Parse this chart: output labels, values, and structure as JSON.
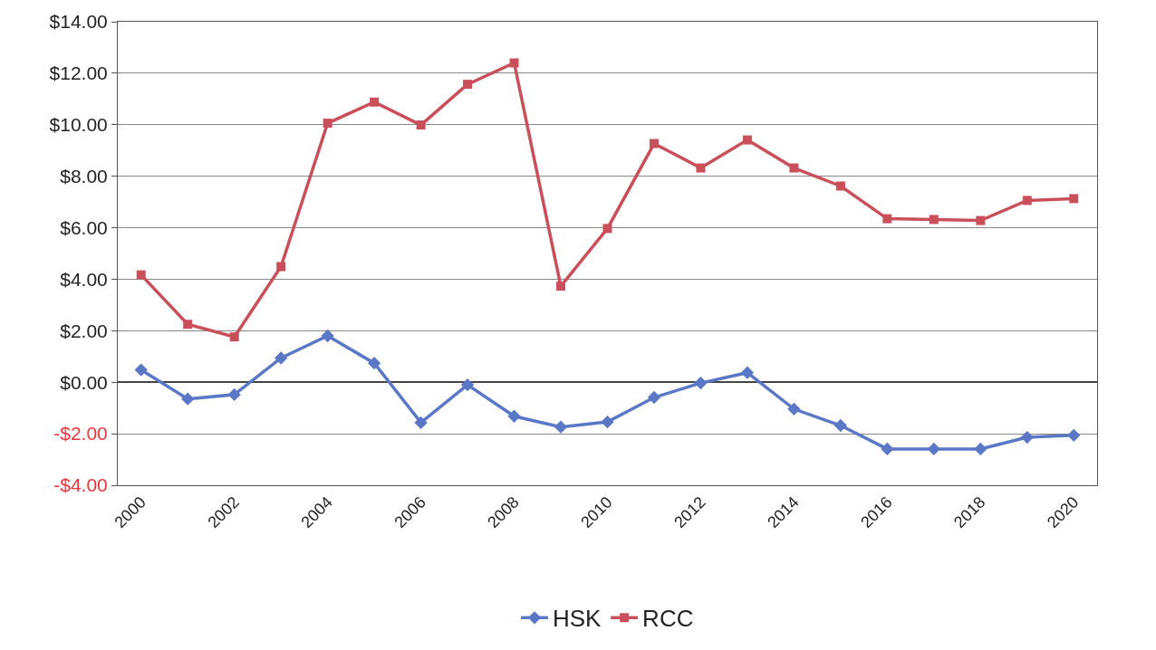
{
  "chart_data": {
    "type": "line",
    "categories": [
      "2000",
      null,
      "2002",
      null,
      "2004",
      null,
      "2006",
      null,
      "2008",
      null,
      "2010",
      null,
      "2012",
      null,
      "2014",
      null,
      "2016",
      null,
      "2018",
      null,
      "2020"
    ],
    "series": [
      {
        "name": "HSK",
        "color": "#5b78c6",
        "marker": "diamond",
        "values": [
          0.48,
          -0.65,
          -0.48,
          0.94,
          1.8,
          0.74,
          -1.57,
          -0.1,
          -1.32,
          -1.74,
          -1.54,
          -0.59,
          -0.03,
          0.37,
          -1.04,
          -1.68,
          -2.59,
          -2.59,
          -2.59,
          -2.14,
          -2.06
        ]
      },
      {
        "name": "RCC",
        "color": "#c9505a",
        "marker": "square",
        "values": [
          4.17,
          2.25,
          1.76,
          4.49,
          10.06,
          10.88,
          9.99,
          11.57,
          12.4,
          3.73,
          5.97,
          9.27,
          8.32,
          9.41,
          8.32,
          7.62,
          6.35,
          6.32,
          6.28,
          7.06,
          7.13
        ]
      }
    ],
    "ylim": [
      -4,
      14
    ],
    "yticks": [
      {
        "value": -4,
        "label": "-$4.00"
      },
      {
        "value": -2,
        "label": "-$2.00"
      },
      {
        "value": 0,
        "label": "$0.00"
      },
      {
        "value": 2,
        "label": "$2.00"
      },
      {
        "value": 4,
        "label": "$4.00"
      },
      {
        "value": 6,
        "label": "$6.00"
      },
      {
        "value": 8,
        "label": "$8.00"
      },
      {
        "value": 10,
        "label": "$10.00"
      },
      {
        "value": 12,
        "label": "$12.00"
      },
      {
        "value": 14,
        "label": "$14.00"
      }
    ],
    "grid": "y",
    "legend": "bottom",
    "line_style": "solid"
  }
}
